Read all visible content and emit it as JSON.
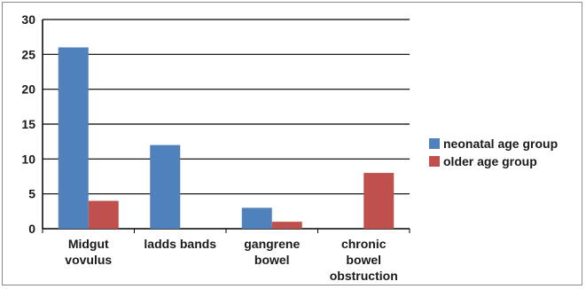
{
  "chart_data": {
    "type": "bar",
    "categories": [
      [
        "Midgut",
        "vovulus"
      ],
      [
        "ladds bands"
      ],
      [
        "gangrene",
        "bowel"
      ],
      [
        "chronic",
        "bowel",
        "obstruction"
      ]
    ],
    "series": [
      {
        "name": "neonatal age group",
        "values": [
          26,
          12,
          3,
          0
        ],
        "color": "#4f81bd"
      },
      {
        "name": "older age group",
        "values": [
          4,
          0,
          1,
          8
        ],
        "color": "#c0504d"
      }
    ],
    "ylim": [
      0,
      30
    ],
    "yticks": [
      "0",
      "5",
      "10",
      "15",
      "20",
      "25",
      "30"
    ],
    "grid": true,
    "legend_position": "right"
  }
}
